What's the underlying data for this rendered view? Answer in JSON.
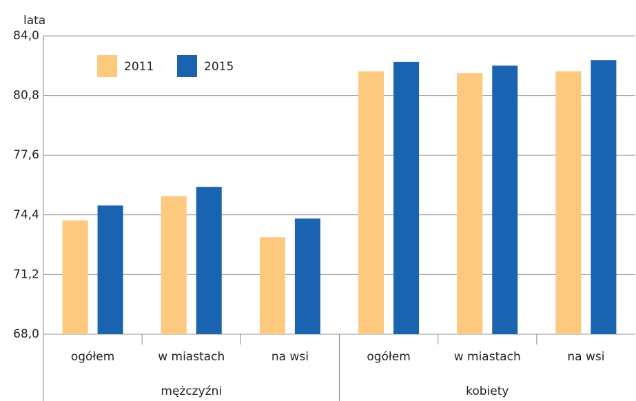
{
  "chart_data": {
    "type": "bar",
    "y_label": "lata",
    "categories": [
      "ogółem",
      "w miastach",
      "na wsi",
      "ogółem",
      "w miastach",
      "na wsi"
    ],
    "groups": [
      {
        "name": "mężczyźni",
        "span": 3
      },
      {
        "name": "kobiety",
        "span": 3
      }
    ],
    "series": [
      {
        "name": "2011",
        "color": "#fdc97f",
        "values": [
          74.1,
          75.4,
          73.2,
          82.1,
          82.0,
          82.1
        ]
      },
      {
        "name": "2015",
        "color": "#1a63b0",
        "values": [
          74.9,
          75.9,
          74.2,
          82.6,
          82.4,
          82.7
        ]
      }
    ],
    "ylim": [
      68,
      84
    ],
    "yticks": [
      {
        "value": 68,
        "label": "68,0"
      },
      {
        "value": 71.2,
        "label": "71,2"
      },
      {
        "value": 74.4,
        "label": "74,4"
      },
      {
        "value": 77.6,
        "label": "77,6"
      },
      {
        "value": 80.8,
        "label": "80,8"
      },
      {
        "value": 84,
        "label": "84,0"
      }
    ],
    "grid": true,
    "legend": "top-left"
  }
}
